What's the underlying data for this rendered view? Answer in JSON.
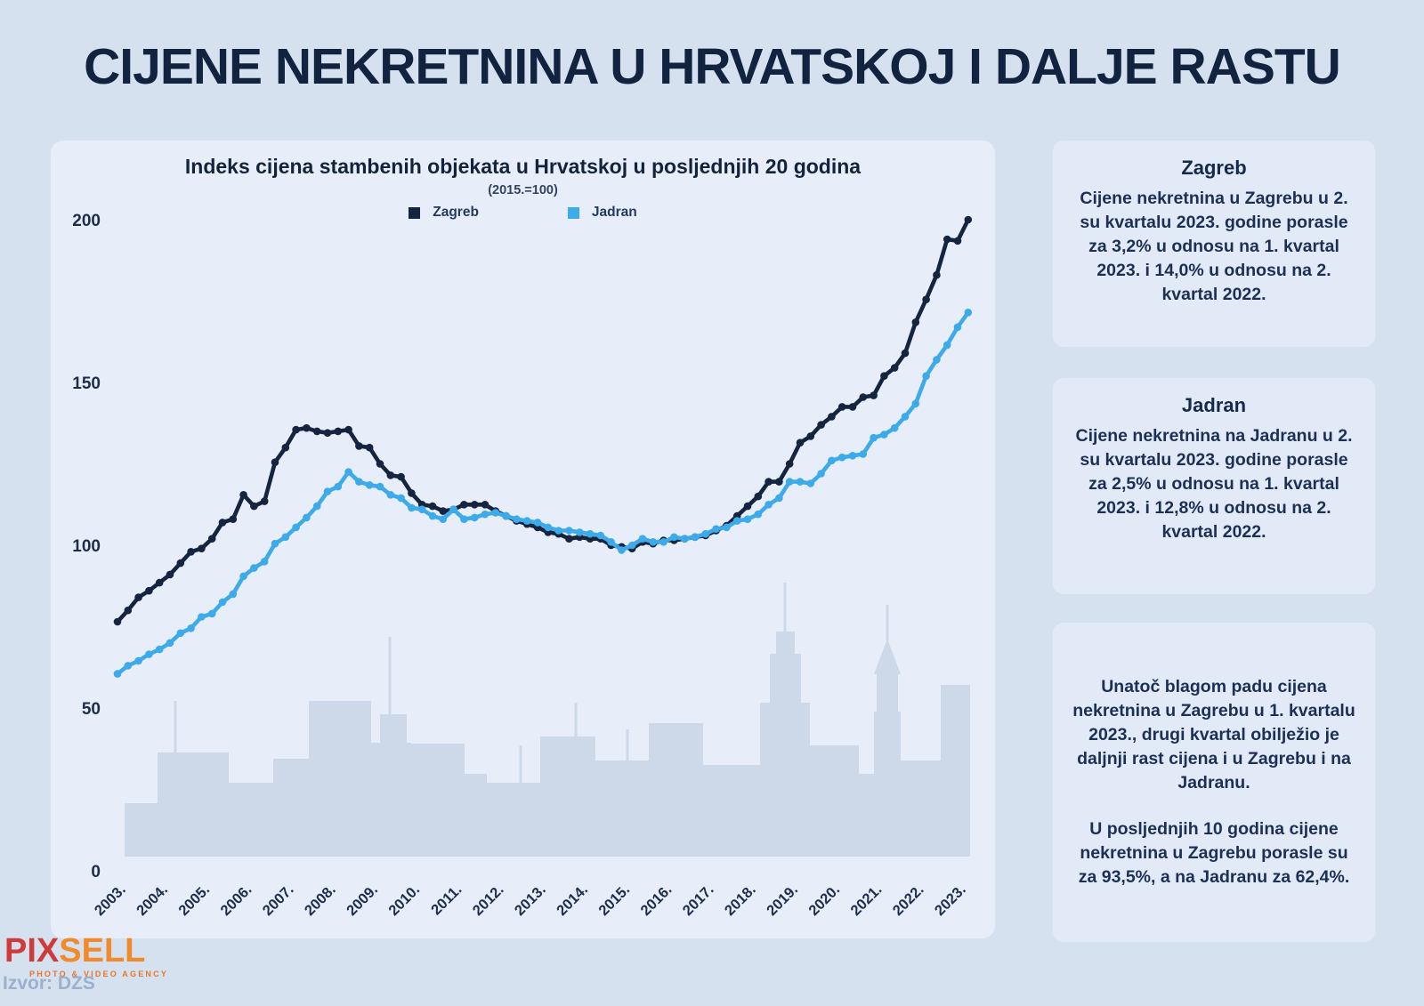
{
  "page_title": "CIJENE NEKRETNINA U HRVATSKOJ I DALJE RASTU",
  "chart": {
    "title": "Indeks cijena stambenih objekata u Hrvatskoj u posljednjih 20 godina",
    "subtitle": "(2015.=100)"
  },
  "chart_data": {
    "type": "line",
    "title": "Indeks cijena stambenih objekata u Hrvatskoj u posljednjih 20 godina",
    "subtitle": "(2015.=100)",
    "x_unit": "quarterly, 2003 Q1 - 2023 Q2",
    "x_labels": [
      "2003.",
      "2004.",
      "2005.",
      "2006.",
      "2007.",
      "2008.",
      "2009.",
      "2010.",
      "2011.",
      "2012.",
      "2013.",
      "2014.",
      "2015.",
      "2016.",
      "2017.",
      "2018.",
      "2019.",
      "2020.",
      "2021.",
      "2022.",
      "2023."
    ],
    "y_ticks": [
      200,
      150,
      100,
      50,
      0
    ],
    "ylim": [
      0,
      210
    ],
    "grid": false,
    "legend_position": "top-center",
    "series": [
      {
        "name": "Zagreb",
        "color": "#15243f",
        "values": [
          76.5,
          80,
          84,
          86,
          88.5,
          91,
          94.5,
          98,
          99,
          102,
          107,
          108,
          115.5,
          112,
          113.5,
          125.5,
          130,
          135.5,
          136,
          135,
          134.5,
          135,
          135.5,
          130.5,
          130,
          125,
          121.5,
          121,
          116,
          112.5,
          112,
          110.5,
          111,
          112.5,
          112.5,
          112.5,
          110.5,
          109,
          107.5,
          106.5,
          105.5,
          104,
          103.5,
          102,
          102.5,
          102,
          102,
          100,
          99.5,
          99,
          101,
          100.5,
          101.5,
          101.5,
          102,
          102.5,
          103,
          104.5,
          106,
          109,
          112,
          115,
          119.5,
          119.5,
          125,
          131.5,
          133.5,
          137,
          139.5,
          142.5,
          142.5,
          145.5,
          146,
          152,
          154.5,
          159,
          168.5,
          175.5,
          183,
          194,
          193.5,
          200
        ]
      },
      {
        "name": "Jadran",
        "color": "#3daae9",
        "values": [
          60.5,
          63,
          64.5,
          66.5,
          68,
          70,
          73,
          74.5,
          78,
          79,
          82.5,
          85,
          90.5,
          93,
          95,
          100.5,
          102.5,
          105.5,
          108.5,
          112,
          116.5,
          118,
          122.5,
          119.5,
          118.5,
          118,
          115.5,
          114.5,
          111.5,
          111,
          109,
          108,
          111,
          108,
          108.5,
          109.5,
          110,
          109,
          108,
          107.5,
          107,
          105.5,
          104.5,
          104.5,
          104,
          103.5,
          103,
          101,
          98.5,
          100,
          102,
          101,
          101,
          102.5,
          102,
          102.5,
          103.5,
          105,
          105.5,
          107.5,
          108,
          109.5,
          112.5,
          114.5,
          119.5,
          119.5,
          119,
          122,
          126,
          127,
          127.5,
          128,
          133,
          134,
          136,
          139.5,
          143.5,
          152,
          157,
          161.5,
          167,
          171.5
        ]
      }
    ]
  },
  "sidebar": {
    "box_zagreb": {
      "title": "Zagreb",
      "segments": [
        {
          "t": "Cijene nekretnina u Zagrebu u 2. su kvartalu 2023. godine porasle za "
        },
        {
          "t": "3,2%",
          "b": true
        },
        {
          "t": " u odnosu na 1. kvartal 2023. i "
        },
        {
          "t": "14,0%",
          "b": true
        },
        {
          "t": " u odnosu na 2. kvartal 2022."
        }
      ]
    },
    "box_jadran": {
      "title": "Jadran",
      "segments": [
        {
          "t": "Cijene nekretnina na Jadranu u 2. su kvartalu 2023. godine porasle za "
        },
        {
          "t": "2,5%",
          "b": true
        },
        {
          "t": " u odnosu na 1. kvartal 2023. i "
        },
        {
          "t": "12,8%",
          "b": true
        },
        {
          "t": " u odnosu na 2. kvartal 2022."
        }
      ]
    },
    "box_summary": {
      "para1_segments": [
        {
          "t": "Unatoč blagom padu cijena nekretnina u Zagrebu u 1. kvartalu 2023., drugi kvartal obilježio je daljnji rast cijena i u Zagrebu i na Jadranu."
        }
      ],
      "para2_segments": [
        {
          "t": "U posljednjih 10 godina cijene nekretnina u Zagrebu porasle su za "
        },
        {
          "t": "93,5%",
          "b": true
        },
        {
          "t": ", a na Jadranu za "
        },
        {
          "t": "62,4%",
          "b": true
        },
        {
          "t": "."
        }
      ]
    }
  },
  "footer": {
    "logo_part1": "PIX",
    "logo_part2": "SELL",
    "logo_tagline": "PHOTO & VIDEO AGENCY",
    "source": "Izvor: DZS"
  },
  "colors": {
    "background": "#d5e1ef",
    "panel": "#e7eef9",
    "skyline": "#cdd9e8",
    "zagreb_line": "#15243f",
    "jadran_line": "#3daae9",
    "title_text": "#12233f",
    "logo_red": "#cf3a3a",
    "logo_orange": "#f08a2a"
  }
}
